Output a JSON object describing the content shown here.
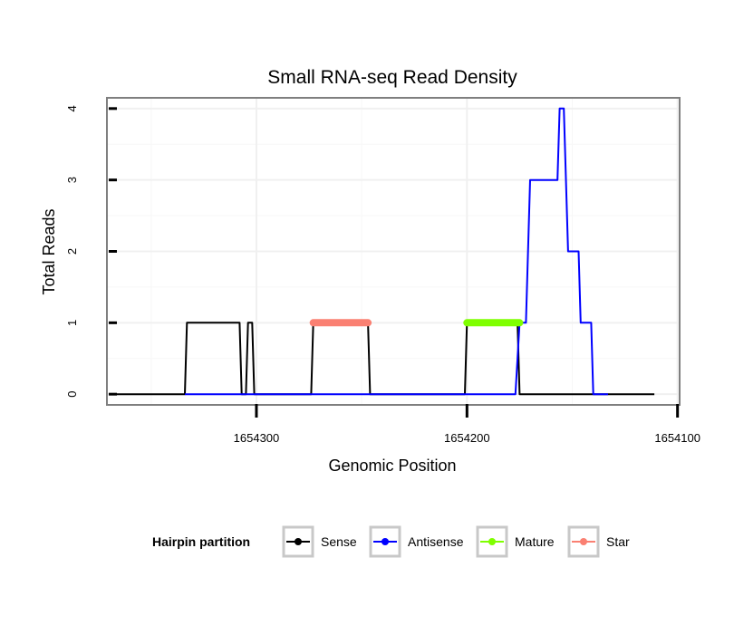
{
  "chart_data": {
    "type": "line",
    "title": "Small RNA-seq Read Density",
    "xlabel": "Genomic Position",
    "ylabel": "Total Reads",
    "x_reversed": true,
    "xlim": [
      1654371,
      1654099
    ],
    "ylim": [
      -0.15,
      4.15
    ],
    "x_ticks": [
      1654300,
      1654200,
      1654100
    ],
    "x_tick_labels": [
      "1654300",
      "1654200",
      "1654100"
    ],
    "y_ticks": [
      0,
      1,
      2,
      3,
      4
    ],
    "y_tick_labels": [
      "0",
      "1",
      "2",
      "3",
      "4"
    ],
    "grid": true,
    "legend": {
      "title": "Hairpin partition",
      "position": "bottom",
      "entries": [
        {
          "name": "Sense",
          "color": "#000000"
        },
        {
          "name": "Antisense",
          "color": "#0000ff"
        },
        {
          "name": "Mature",
          "color": "#7fff00"
        },
        {
          "name": "Star",
          "color": "#fa8072"
        }
      ]
    },
    "series": [
      {
        "name": "Sense",
        "color": "#000000",
        "x": [
          1654368,
          1654334,
          1654333,
          1654308,
          1654307,
          1654305,
          1654304,
          1654302,
          1654301,
          1654286,
          1654285,
          1654274,
          1654273,
          1654247,
          1654246,
          1654219,
          1654218,
          1654201,
          1654200,
          1654176,
          1654175,
          1654111
        ],
        "values": [
          0,
          0,
          1,
          1,
          0,
          0,
          1,
          1,
          0,
          0,
          0,
          0,
          1,
          1,
          0,
          0,
          0,
          0,
          1,
          1,
          0,
          0
        ]
      },
      {
        "name": "Antisense",
        "color": "#0000ff",
        "x": [
          1654334,
          1654177,
          1654175,
          1654172,
          1654170,
          1654157,
          1654156,
          1654154,
          1654152,
          1654147,
          1654146,
          1654141,
          1654140,
          1654133
        ],
        "values": [
          0,
          0,
          1,
          1,
          3,
          3,
          4,
          4,
          2,
          2,
          1,
          1,
          0,
          0
        ]
      },
      {
        "name": "Mature",
        "color": "#7fff00",
        "x": [
          1654200,
          1654175
        ],
        "values": [
          1,
          1
        ]
      },
      {
        "name": "Star",
        "color": "#fa8072",
        "x": [
          1654273,
          1654247
        ],
        "values": [
          1,
          1
        ]
      }
    ]
  }
}
